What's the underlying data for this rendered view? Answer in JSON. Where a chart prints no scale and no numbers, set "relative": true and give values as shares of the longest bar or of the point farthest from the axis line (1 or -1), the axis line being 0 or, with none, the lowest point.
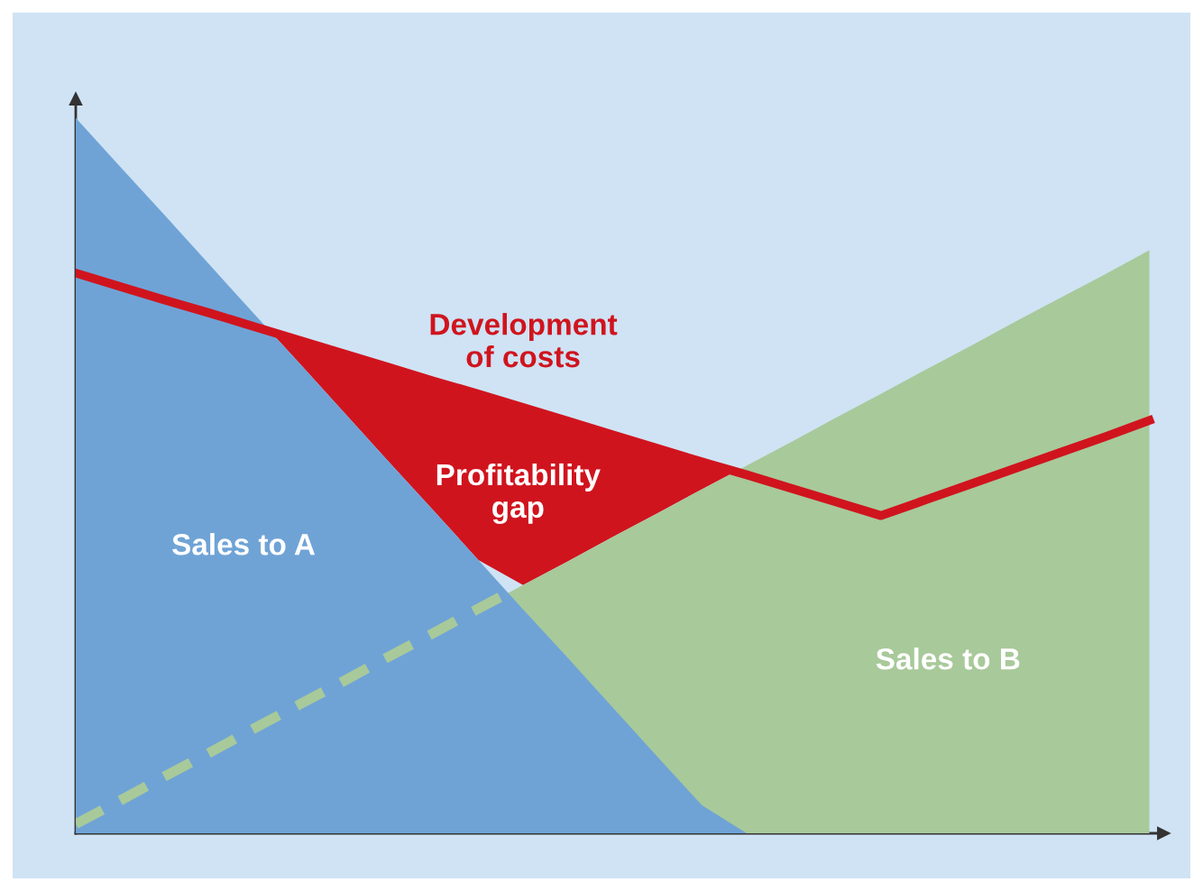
{
  "chart_data": {
    "type": "area",
    "relative": true,
    "legend": false,
    "categories": [
      null,
      null,
      null,
      null,
      null,
      null,
      null,
      null,
      null,
      null,
      null,
      null,
      null,
      null,
      null,
      null,
      null,
      null,
      null,
      null,
      null,
      null,
      null,
      null,
      null
    ],
    "series": [
      {
        "name": "Sales to A",
        "color": "#6fa3d6",
        "values": [
          1.0,
          0.931,
          0.863,
          0.794,
          0.725,
          0.657,
          0.588,
          0.519,
          0.451,
          0.382,
          0.313,
          0.245,
          0.176,
          0.107,
          0.039,
          0,
          0,
          0,
          0,
          0,
          0,
          0,
          0,
          0,
          0
        ]
      },
      {
        "name": "Sales to B",
        "color": "#a8c99a",
        "values": [
          0.013,
          0.046,
          0.08,
          0.113,
          0.147,
          0.18,
          0.213,
          0.247,
          0.28,
          0.314,
          0.347,
          0.38,
          0.414,
          0.447,
          0.481,
          0.514,
          0.547,
          0.581,
          0.614,
          0.648,
          0.681,
          0.715,
          0.748,
          0.781,
          0.815
        ]
      },
      {
        "name": "Development\nof costs",
        "type": "line",
        "color": "#d0141e",
        "values": [
          0.783,
          0.764,
          0.745,
          0.727,
          0.708,
          0.689,
          0.67,
          0.651,
          0.632,
          0.614,
          0.595,
          0.576,
          0.557,
          0.538,
          0.519,
          0.501,
          0.482,
          0.463,
          0.444,
          0.466,
          0.488,
          0.51,
          0.532,
          0.554,
          0.577
        ]
      }
    ],
    "annotations": [
      "Profitability\ngap"
    ]
  }
}
